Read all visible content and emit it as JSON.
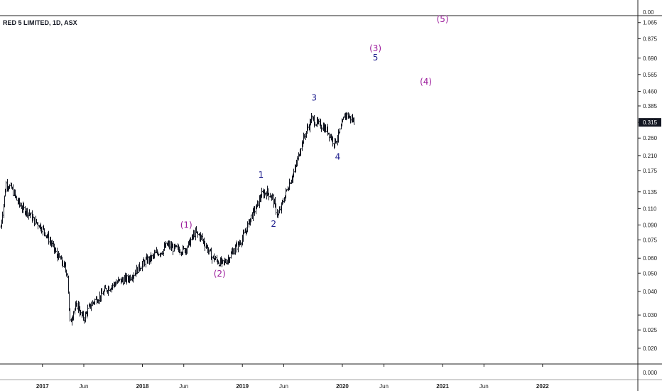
{
  "title": "RED 5 LIMITED, 1D, ASX",
  "colors": {
    "bars": "#131722",
    "axis": "#222222",
    "major_wave": "#9c1c9c",
    "minor_wave": "#1c1c8c",
    "price_badge": "#131722"
  },
  "chart_data": {
    "type": "bar",
    "subtype": "ohlc",
    "title": "RED 5 LIMITED, 1D, ASX",
    "y_scale": "log",
    "ylim": [
      0.018,
      1.1
    ],
    "y_ticks": [
      "1.065",
      "0.875",
      "0.690",
      "0.565",
      "0.460",
      "0.385",
      "0.315",
      "0.260",
      "0.210",
      "0.175",
      "0.135",
      "0.110",
      "0.090",
      "0.075",
      "0.060",
      "0.050",
      "0.040",
      "0.030",
      "0.025",
      "0.020"
    ],
    "y_top_label": "0.00",
    "y_bottom_label": "0.000",
    "x_ticks": [
      "2017",
      "Jun",
      "2018",
      "Jun",
      "2019",
      "Jun",
      "2020",
      "Jun",
      "2021",
      "Jun",
      "2022"
    ],
    "x_tick_dates": [
      "2017-01-01",
      "2017-06-01",
      "2018-01-01",
      "2018-06-01",
      "2019-01-01",
      "2019-06-01",
      "2020-01-01",
      "2020-06-01",
      "2021-01-01",
      "2021-06-01",
      "2022-01-01"
    ],
    "xlim": [
      "2016-07-30",
      "2022-12-15"
    ],
    "last_price": "0.315",
    "price_series": {
      "dates": [
        "2016-08-01",
        "2016-08-20",
        "2016-09-10",
        "2016-10-01",
        "2016-10-20",
        "2016-11-10",
        "2016-12-01",
        "2016-12-20",
        "2017-01-10",
        "2017-02-01",
        "2017-02-20",
        "2017-03-10",
        "2017-04-01",
        "2017-04-10",
        "2017-04-25",
        "2017-05-10",
        "2017-05-20",
        "2017-06-01",
        "2017-06-20",
        "2017-07-10",
        "2017-08-01",
        "2017-08-20",
        "2017-09-10",
        "2017-10-01",
        "2017-10-20",
        "2017-11-10",
        "2017-12-01",
        "2017-12-20",
        "2018-01-10",
        "2018-02-01",
        "2018-02-20",
        "2018-03-10",
        "2018-04-01",
        "2018-04-20",
        "2018-05-10",
        "2018-06-01",
        "2018-06-20",
        "2018-07-10",
        "2018-08-01",
        "2018-08-20",
        "2018-09-10",
        "2018-10-01",
        "2018-10-20",
        "2018-11-10",
        "2018-12-01",
        "2018-12-20",
        "2019-01-10",
        "2019-02-01",
        "2019-02-20",
        "2019-03-10",
        "2019-04-01",
        "2019-04-20",
        "2019-05-10",
        "2019-06-01",
        "2019-06-20",
        "2019-07-10",
        "2019-08-01",
        "2019-08-20",
        "2019-09-10",
        "2019-10-01",
        "2019-10-20",
        "2019-11-10",
        "2019-12-01",
        "2019-12-20",
        "2020-01-10",
        "2020-02-01",
        "2020-02-15"
      ],
      "close": [
        0.088,
        0.15,
        0.14,
        0.12,
        0.11,
        0.105,
        0.095,
        0.09,
        0.082,
        0.072,
        0.063,
        0.058,
        0.05,
        0.027,
        0.032,
        0.034,
        0.03,
        0.029,
        0.033,
        0.036,
        0.038,
        0.041,
        0.043,
        0.045,
        0.046,
        0.047,
        0.05,
        0.054,
        0.058,
        0.06,
        0.064,
        0.065,
        0.071,
        0.068,
        0.067,
        0.066,
        0.072,
        0.082,
        0.078,
        0.07,
        0.061,
        0.058,
        0.056,
        0.06,
        0.067,
        0.072,
        0.082,
        0.1,
        0.112,
        0.13,
        0.135,
        0.125,
        0.1,
        0.125,
        0.15,
        0.175,
        0.235,
        0.28,
        0.33,
        0.31,
        0.3,
        0.28,
        0.245,
        0.275,
        0.35,
        0.33,
        0.315
      ]
    }
  },
  "wave_labels": [
    {
      "text": "(1)",
      "date": "2018-06-10",
      "price": 0.087,
      "kind": "major"
    },
    {
      "text": "(2)",
      "date": "2018-10-10",
      "price": 0.048,
      "kind": "major"
    },
    {
      "text": "1",
      "date": "2019-03-10",
      "price": 0.16,
      "kind": "minor"
    },
    {
      "text": "2",
      "date": "2019-04-25",
      "price": 0.088,
      "kind": "minor"
    },
    {
      "text": "3",
      "date": "2019-09-20",
      "price": 0.41,
      "kind": "minor"
    },
    {
      "text": "4",
      "date": "2019-12-15",
      "price": 0.2,
      "kind": "minor"
    },
    {
      "text": "(3)",
      "date": "2020-05-01",
      "price": 0.75,
      "kind": "major"
    },
    {
      "text": "5",
      "date": "2020-05-01",
      "price": 0.67,
      "kind": "minor"
    },
    {
      "text": "(4)",
      "date": "2020-11-01",
      "price": 0.5,
      "kind": "major"
    },
    {
      "text": "(5)",
      "date": "2021-01-01",
      "price": 1.07,
      "kind": "major"
    }
  ]
}
